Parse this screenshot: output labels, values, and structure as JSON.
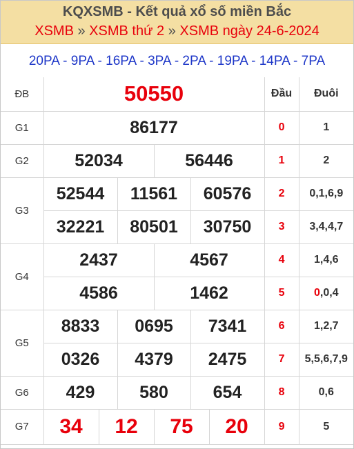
{
  "header": {
    "title": "KQXSMB - Kết quả xổ số miền Bắc",
    "crumbs": [
      "XSMB",
      "XSMB thứ 2",
      "XSMB ngày 24-6-2024"
    ],
    "crumb_sep": "»"
  },
  "codes": [
    "20PA",
    "9PA",
    "16PA",
    "3PA",
    "2PA",
    "19PA",
    "14PA",
    "7PA"
  ],
  "codes_sep": "-",
  "table": {
    "dau_label": "Đầu",
    "duoi_label": "Đuôi",
    "prizes": {
      "db": {
        "label": "ĐB",
        "values": [
          "50550"
        ]
      },
      "g1": {
        "label": "G1",
        "values": [
          "86177"
        ]
      },
      "g2": {
        "label": "G2",
        "values": [
          "52034",
          "56446"
        ]
      },
      "g3": {
        "label": "G3",
        "values": [
          "52544",
          "11561",
          "60576",
          "32221",
          "80501",
          "30750"
        ]
      },
      "g4": {
        "label": "G4",
        "values": [
          "2437",
          "4567",
          "4586",
          "1462"
        ]
      },
      "g5": {
        "label": "G5",
        "values": [
          "8833",
          "0695",
          "7341",
          "0326",
          "4379",
          "2475"
        ]
      },
      "g6": {
        "label": "G6",
        "values": [
          "429",
          "580",
          "654"
        ]
      },
      "g7": {
        "label": "G7",
        "values": [
          "34",
          "12",
          "75",
          "20"
        ]
      }
    },
    "loto": [
      {
        "dau": "0",
        "duoi": "1"
      },
      {
        "dau": "1",
        "duoi": "2"
      },
      {
        "dau": "2",
        "duoi": "0,1,6,9"
      },
      {
        "dau": "3",
        "duoi": "3,4,4,7"
      },
      {
        "dau": "4",
        "duoi": "1,4,6"
      },
      {
        "dau": "5",
        "duoi_highlight": "0",
        "duoi_rest": ",0,4"
      },
      {
        "dau": "6",
        "duoi": "1,2,7"
      },
      {
        "dau": "7",
        "duoi": "5,5,6,7,9"
      },
      {
        "dau": "8",
        "duoi": "0,6"
      },
      {
        "dau": "9",
        "duoi": "5"
      }
    ]
  },
  "colors": {
    "header_bg": "#f4dfa3",
    "accent_red": "#e8000b",
    "code_blue": "#1e37c8",
    "grid": "#d6d6d6"
  }
}
